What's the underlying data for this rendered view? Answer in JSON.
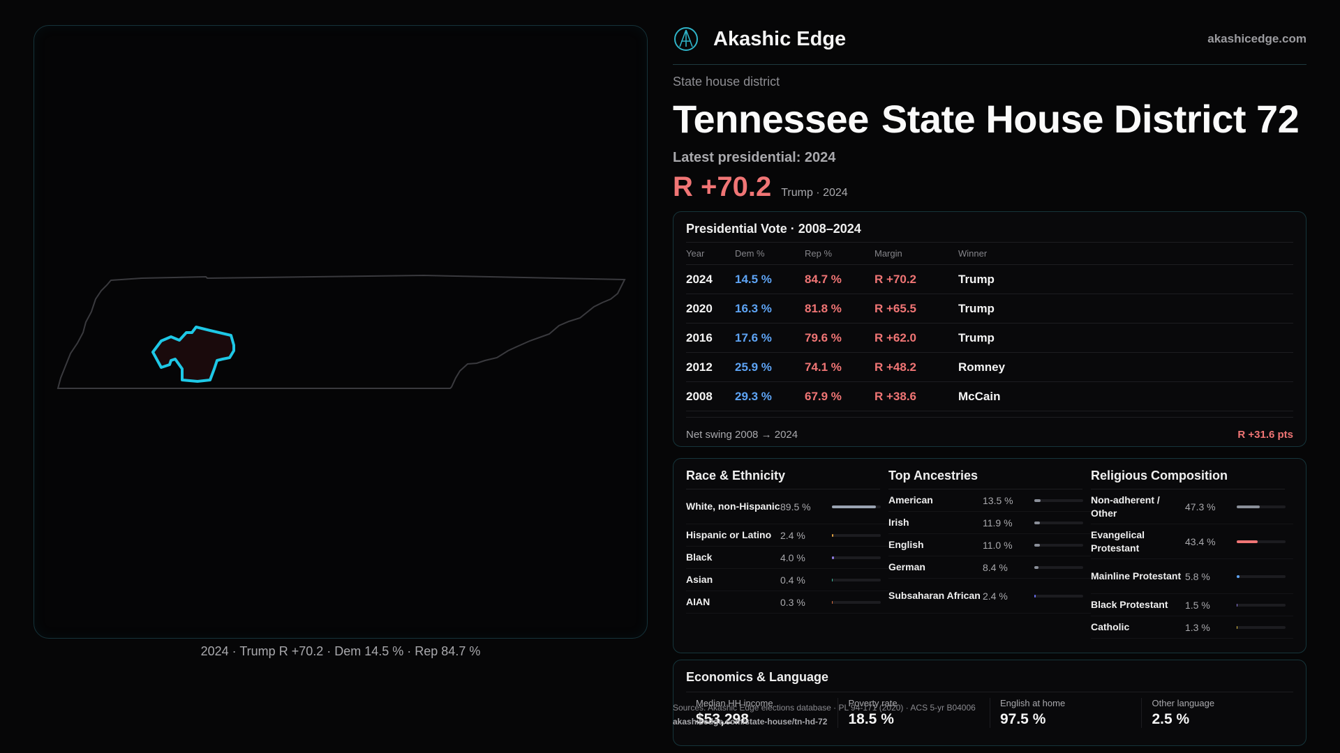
{
  "brand": {
    "name": "Akashic Edge",
    "url": "akashicedge.com"
  },
  "header": {
    "kicker": "State house district",
    "title_state": "Tennessee",
    "title_district": "State House District 72",
    "latest": "Latest presidential: 2024",
    "margin": "R +70.2",
    "margin_sub": "Trump · 2024"
  },
  "map": {
    "caption": "2024 · Trump R +70.2 · Dem 14.5 % · Rep 84.7 %"
  },
  "presidential": {
    "title": "Presidential Vote · 2008–2024",
    "columns": [
      "Year",
      "Dem %",
      "Rep %",
      "Margin",
      "Winner"
    ],
    "rows": [
      {
        "year": "2024",
        "dem": "14.5 %",
        "rep": "84.7 %",
        "margin": "R +70.2",
        "winner": "Trump"
      },
      {
        "year": "2020",
        "dem": "16.3 %",
        "rep": "81.8 %",
        "margin": "R +65.5",
        "winner": "Trump"
      },
      {
        "year": "2016",
        "dem": "17.6 %",
        "rep": "79.6 %",
        "margin": "R +62.0",
        "winner": "Trump"
      },
      {
        "year": "2012",
        "dem": "25.9 %",
        "rep": "74.1 %",
        "margin": "R +48.2",
        "winner": "Romney"
      },
      {
        "year": "2008",
        "dem": "29.3 %",
        "rep": "67.9 %",
        "margin": "R +38.6",
        "winner": "McCain"
      }
    ],
    "swing_label": "Net swing 2008 → 2024",
    "swing_value": "R +31.6 pts"
  },
  "race": {
    "title": "Race & Ethnicity",
    "rows": [
      {
        "label": "White, non-Hispanic",
        "value": "89.5 %",
        "fraction": 0.895,
        "color": "#9aa3b2"
      },
      {
        "label": "Hispanic or Latino",
        "value": "2.4 %",
        "fraction": 0.024,
        "color": "#e0a040"
      },
      {
        "label": "Black",
        "value": "4.0 %",
        "fraction": 0.04,
        "color": "#8f7be0"
      },
      {
        "label": "Asian",
        "value": "0.4 %",
        "fraction": 0.004,
        "color": "#40c0a0"
      },
      {
        "label": "AIAN",
        "value": "0.3 %",
        "fraction": 0.003,
        "color": "#e07040"
      }
    ]
  },
  "ancestry": {
    "title": "Top Ancestries",
    "rows": [
      {
        "label": "American",
        "value": "13.5 %",
        "fraction": 0.135,
        "color": "#8a8f99"
      },
      {
        "label": "Irish",
        "value": "11.9 %",
        "fraction": 0.119,
        "color": "#8a8f99"
      },
      {
        "label": "English",
        "value": "11.0 %",
        "fraction": 0.11,
        "color": "#8a8f99"
      },
      {
        "label": "German",
        "value": "8.4 %",
        "fraction": 0.084,
        "color": "#8a8f99"
      },
      {
        "label": "Subsaharan African",
        "value": "2.4 %",
        "fraction": 0.024,
        "color": "#6a6ff0"
      }
    ]
  },
  "religion": {
    "title": "Religious Composition",
    "rows": [
      {
        "label": "Non-adherent / Other",
        "value": "47.3 %",
        "fraction": 0.473,
        "color": "#8a8f99"
      },
      {
        "label": "Evangelical Protestant",
        "value": "43.4 %",
        "fraction": 0.434,
        "color": "#f07575"
      },
      {
        "label": "Mainline Protestant",
        "value": "5.8 %",
        "fraction": 0.058,
        "color": "#5ea4f5"
      },
      {
        "label": "Black Protestant",
        "value": "1.5 %",
        "fraction": 0.015,
        "color": "#8f7be0"
      },
      {
        "label": "Catholic",
        "value": "1.3 %",
        "fraction": 0.013,
        "color": "#e0c040"
      }
    ]
  },
  "economics": {
    "title": "Economics & Language",
    "cells": [
      {
        "label": "Median HH income",
        "value": "$53,298"
      },
      {
        "label": "Poverty rate",
        "value": "18.5 %"
      },
      {
        "label": "English at home",
        "value": "97.5 %"
      },
      {
        "label": "Other language",
        "value": "2.5 %"
      }
    ]
  },
  "sources": {
    "line": "Sources: Akashic Edge elections database · PL 94-171 (2020) · ACS 5-yr B04006",
    "url": "akashicedge.com/state-house/tn-hd-72"
  }
}
